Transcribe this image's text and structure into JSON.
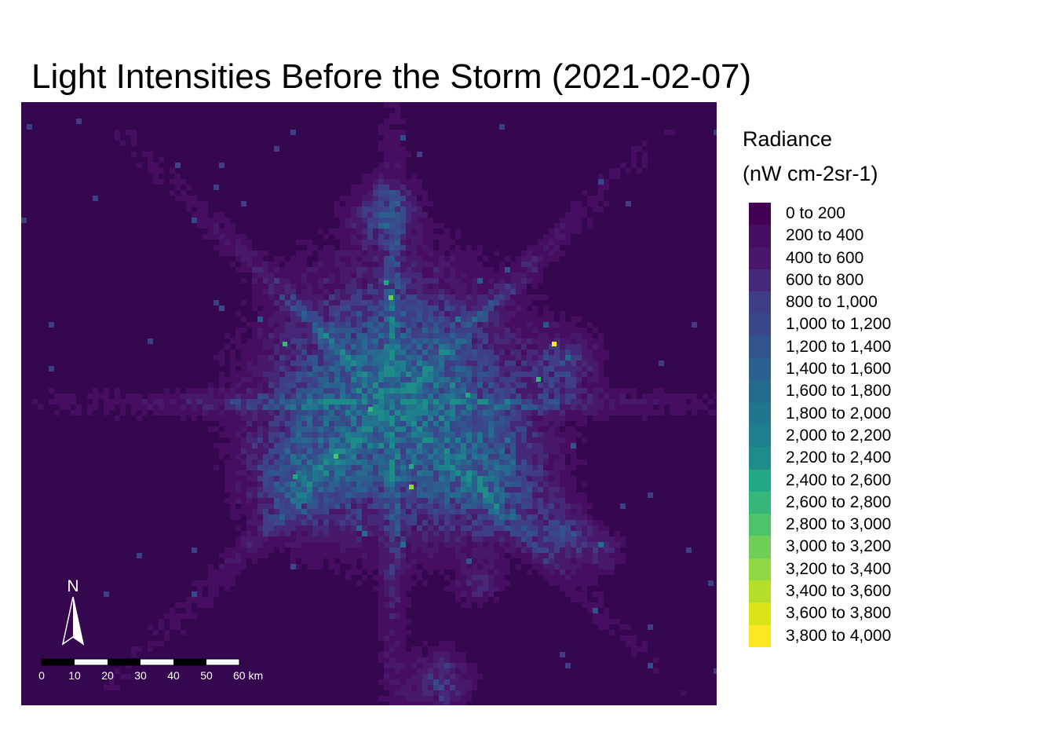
{
  "title": "Light Intensities Before the Storm (2021-02-07)",
  "legend": {
    "title_line1": "Radiance",
    "title_line2": "(nW cm-2sr-1)",
    "items": [
      {
        "label": "0 to 200",
        "color": "#440154"
      },
      {
        "label": "200 to 400",
        "color": "#470d60"
      },
      {
        "label": "400 to 600",
        "color": "#48196b"
      },
      {
        "label": "600 to 800",
        "color": "#462878"
      },
      {
        "label": "800 to 1,000",
        "color": "#3f3d84"
      },
      {
        "label": "1,000 to 1,200",
        "color": "#38488a"
      },
      {
        "label": "1,200 to 1,400",
        "color": "#31548d"
      },
      {
        "label": "1,400 to 1,600",
        "color": "#2b5f8e"
      },
      {
        "label": "1,600 to 1,800",
        "color": "#266a8e"
      },
      {
        "label": "1,800 to 2,000",
        "color": "#21758e"
      },
      {
        "label": "2,000 to 2,200",
        "color": "#1e808d"
      },
      {
        "label": "2,200 to 2,400",
        "color": "#1f8c89"
      },
      {
        "label": "2,400 to 2,600",
        "color": "#22a884"
      },
      {
        "label": "2,600 to 2,800",
        "color": "#35b779"
      },
      {
        "label": "2,800 to 3,000",
        "color": "#4ec36b"
      },
      {
        "label": "3,000 to 3,200",
        "color": "#6ece58"
      },
      {
        "label": "3,200 to 3,400",
        "color": "#8fd744"
      },
      {
        "label": "3,400 to 3,600",
        "color": "#b5de2b"
      },
      {
        "label": "3,600 to 3,800",
        "color": "#dae319"
      },
      {
        "label": "3,800 to 4,000",
        "color": "#fde725"
      }
    ]
  },
  "map": {
    "background_color": "#34074e",
    "north_label": "N",
    "scale_labels": [
      "0",
      "10",
      "20",
      "30",
      "40",
      "50",
      "60 km"
    ]
  }
}
